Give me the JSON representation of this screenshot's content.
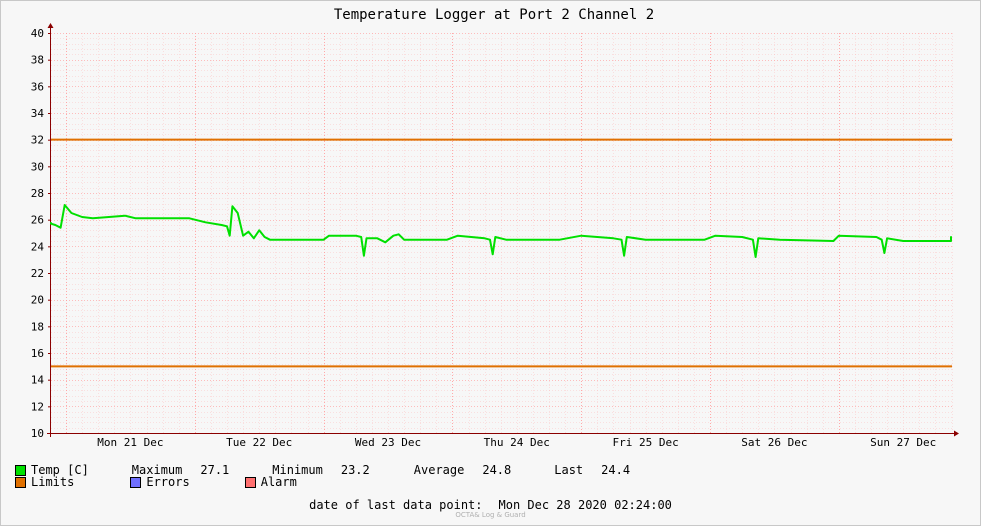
{
  "chart_data": {
    "type": "line",
    "title": "Temperature Logger at Port 2 Channel 2",
    "ylim": [
      10,
      40
    ],
    "y_ticks": [
      10,
      12,
      14,
      16,
      18,
      20,
      22,
      24,
      26,
      28,
      30,
      32,
      34,
      36,
      38,
      40
    ],
    "x_range_days": [
      "Mon 21 Dec",
      "Tue 22 Dec",
      "Wed 23 Dec",
      "Thu 24 Dec",
      "Fri 25 Dec",
      "Sat 26 Dec",
      "Sun 27 Dec"
    ],
    "grid": true,
    "series": [
      {
        "name": "Temp [C]",
        "color": "#00e000",
        "points": [
          [
            "2020-12-20 18:00",
            25.8
          ],
          [
            "2020-12-20 20:00",
            25.7
          ],
          [
            "2020-12-20 22:00",
            25.6
          ],
          [
            "2020-12-20 23:00",
            25.4
          ],
          [
            "2020-12-20 23:45",
            27.1
          ],
          [
            "2020-12-21 01:00",
            26.5
          ],
          [
            "2020-12-21 03:00",
            26.2
          ],
          [
            "2020-12-21 05:00",
            26.1
          ],
          [
            "2020-12-21 08:00",
            26.2
          ],
          [
            "2020-12-21 11:00",
            26.3
          ],
          [
            "2020-12-21 13:00",
            26.1
          ],
          [
            "2020-12-21 18:00",
            26.1
          ],
          [
            "2020-12-21 23:00",
            26.1
          ],
          [
            "2020-12-22 02:00",
            25.8
          ],
          [
            "2020-12-22 05:00",
            25.6
          ],
          [
            "2020-12-22 06:00",
            25.5
          ],
          [
            "2020-12-22 06:30",
            24.8
          ],
          [
            "2020-12-22 07:00",
            27.0
          ],
          [
            "2020-12-22 08:00",
            26.5
          ],
          [
            "2020-12-22 09:00",
            24.8
          ],
          [
            "2020-12-22 10:00",
            25.1
          ],
          [
            "2020-12-22 11:00",
            24.6
          ],
          [
            "2020-12-22 12:00",
            25.2
          ],
          [
            "2020-12-22 13:00",
            24.7
          ],
          [
            "2020-12-22 14:00",
            24.5
          ],
          [
            "2020-12-22 20:00",
            24.5
          ],
          [
            "2020-12-23 00:00",
            24.5
          ],
          [
            "2020-12-23 01:00",
            24.8
          ],
          [
            "2020-12-23 06:00",
            24.8
          ],
          [
            "2020-12-23 07:00",
            24.7
          ],
          [
            "2020-12-23 07:30",
            23.3
          ],
          [
            "2020-12-23 08:00",
            24.6
          ],
          [
            "2020-12-23 10:00",
            24.6
          ],
          [
            "2020-12-23 11:30",
            24.3
          ],
          [
            "2020-12-23 13:00",
            24.8
          ],
          [
            "2020-12-23 14:00",
            24.9
          ],
          [
            "2020-12-23 15:00",
            24.5
          ],
          [
            "2020-12-23 23:00",
            24.5
          ],
          [
            "2020-12-24 01:00",
            24.8
          ],
          [
            "2020-12-24 06:00",
            24.6
          ],
          [
            "2020-12-24 07:00",
            24.5
          ],
          [
            "2020-12-24 07:30",
            23.4
          ],
          [
            "2020-12-24 08:00",
            24.7
          ],
          [
            "2020-12-24 10:00",
            24.5
          ],
          [
            "2020-12-24 20:00",
            24.5
          ],
          [
            "2020-12-25 00:00",
            24.8
          ],
          [
            "2020-12-25 06:00",
            24.6
          ],
          [
            "2020-12-25 07:30",
            24.5
          ],
          [
            "2020-12-25 08:00",
            23.3
          ],
          [
            "2020-12-25 08:30",
            24.7
          ],
          [
            "2020-12-25 12:00",
            24.5
          ],
          [
            "2020-12-25 23:00",
            24.5
          ],
          [
            "2020-12-26 01:00",
            24.8
          ],
          [
            "2020-12-26 06:00",
            24.7
          ],
          [
            "2020-12-26 08:00",
            24.5
          ],
          [
            "2020-12-26 08:30",
            23.2
          ],
          [
            "2020-12-26 09:00",
            24.6
          ],
          [
            "2020-12-26 13:00",
            24.5
          ],
          [
            "2020-12-26 23:00",
            24.4
          ],
          [
            "2020-12-27 00:00",
            24.8
          ],
          [
            "2020-12-27 07:00",
            24.7
          ],
          [
            "2020-12-27 08:00",
            24.5
          ],
          [
            "2020-12-27 08:30",
            23.5
          ],
          [
            "2020-12-27 09:00",
            24.6
          ],
          [
            "2020-12-27 12:00",
            24.4
          ],
          [
            "2020-12-27 23:00",
            24.4
          ],
          [
            "2020-12-28 00:00",
            24.7
          ],
          [
            "2020-12-28 01:00",
            24.6
          ],
          [
            "2020-12-28 02:24",
            24.4
          ]
        ]
      },
      {
        "name": "Limits",
        "color": "#e07000",
        "values": [
          32,
          15
        ]
      },
      {
        "name": "Errors",
        "color": "#7070ff"
      },
      {
        "name": "Alarm",
        "color": "#ff7070"
      }
    ]
  },
  "legend": {
    "temp_label": "Temp [C]",
    "limits_label": "Limits",
    "errors_label": "Errors",
    "alarm_label": "Alarm",
    "maximum_label": "Maximum",
    "maximum_value": "27.1",
    "minimum_label": "Minimum",
    "minimum_value": "23.2",
    "average_label": "Average",
    "average_value": "24.8",
    "last_label": "Last",
    "last_value": "24.4"
  },
  "footer": {
    "last_point_label": "date of last data point:",
    "last_point_value": "Mon Dec 28 2020 02:24:00",
    "watermark": "OCTA& Log & Guard"
  },
  "colors": {
    "temp": "#00e000",
    "limits": "#e07000",
    "errors": "#7070ff",
    "alarm": "#ff7070",
    "grid": "#ffa0a0",
    "axis": "#8b0000"
  }
}
